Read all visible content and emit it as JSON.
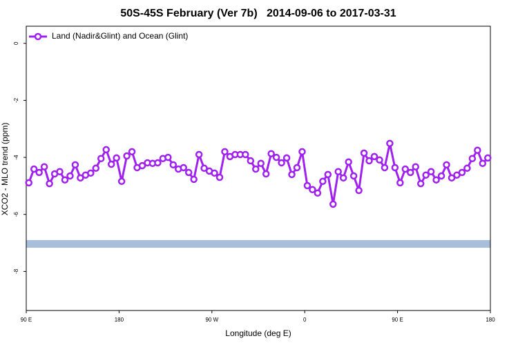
{
  "chart_data": {
    "type": "line",
    "title": "50S-45S February (Ver 7b)   2014-09-06 to 2017-03-31",
    "xlabel": "Longitude (deg E)",
    "ylabel": "XCO2 - MLO trend (ppm)",
    "xlim": [
      90,
      540
    ],
    "ylim": [
      -9.37,
      0.6
    ],
    "xticks": [
      {
        "value": 90,
        "label": "90 E"
      },
      {
        "value": 180,
        "label": "180"
      },
      {
        "value": 270,
        "label": "90 W"
      },
      {
        "value": 360,
        "label": "0"
      },
      {
        "value": 450,
        "label": "90 E"
      },
      {
        "value": 540,
        "label": "180"
      }
    ],
    "yticks": [
      0,
      -2,
      -4,
      -6,
      -8
    ],
    "legend": "top-left",
    "band": {
      "ylim": [
        -7.17,
        -6.9
      ],
      "color": "#a8bfdc"
    },
    "x": [
      92.5,
      97.5,
      102.5,
      107.5,
      112.5,
      117.5,
      122.5,
      127.5,
      132.5,
      137.5,
      142.5,
      147.5,
      152.5,
      157.5,
      162.5,
      167.5,
      172.5,
      177.5,
      182.5,
      187.5,
      192.5,
      197.5,
      202.5,
      207.5,
      212.5,
      217.5,
      222.5,
      227.5,
      232.5,
      237.5,
      242.5,
      247.5,
      252.5,
      257.5,
      262.5,
      267.5,
      272.5,
      277.5,
      282.5,
      287.5,
      292.5,
      297.5,
      302.5,
      307.5,
      312.5,
      317.5,
      322.5,
      327.5,
      332.5,
      337.5,
      342.5,
      347.5,
      352.5,
      357.5,
      362.5,
      367.5,
      372.5,
      377.5,
      382.5,
      387.5,
      392.5,
      397.5,
      402.5,
      407.5,
      412.5,
      417.5,
      422.5,
      427.5,
      432.5,
      437.5,
      442.5,
      447.5,
      452.5,
      457.5,
      462.5,
      467.5,
      472.5,
      477.5,
      482.5,
      487.5,
      492.5,
      497.5,
      502.5,
      507.5,
      512.5,
      517.5,
      522.5,
      527.5,
      532.5,
      537.5
    ],
    "series": [
      {
        "name": "Land (Nadir&Glint) and Ocean (Glint)",
        "color": "#a020f0",
        "values": [
          -4.89,
          -4.41,
          -4.53,
          -4.33,
          -4.92,
          -4.58,
          -4.5,
          -4.79,
          -4.65,
          -4.26,
          -4.72,
          -4.62,
          -4.55,
          -4.38,
          -4.04,
          -3.73,
          -4.24,
          -4.02,
          -4.84,
          -3.95,
          -3.8,
          -4.36,
          -4.29,
          -4.19,
          -4.21,
          -4.19,
          -4.04,
          -4.0,
          -4.26,
          -4.41,
          -4.36,
          -4.53,
          -4.77,
          -3.9,
          -4.38,
          -4.48,
          -4.55,
          -4.7,
          -3.8,
          -3.97,
          -3.9,
          -3.9,
          -3.9,
          -4.12,
          -4.41,
          -4.21,
          -4.58,
          -3.87,
          -4.0,
          -4.19,
          -4.02,
          -4.6,
          -4.36,
          -3.8,
          -4.99,
          -5.13,
          -5.25,
          -4.84,
          -4.6,
          -5.64,
          -4.5,
          -4.72,
          -4.16,
          -4.65,
          -5.16,
          -3.85,
          -4.12,
          -3.97,
          -4.09,
          -4.36,
          -3.51,
          -4.36,
          -4.89,
          -4.41,
          -4.53,
          -4.33,
          -4.92,
          -4.62,
          -4.5,
          -4.79,
          -4.65,
          -4.26,
          -4.72,
          -4.62,
          -4.53,
          -4.38,
          -4.04,
          -3.75,
          -4.21,
          -4.02
        ]
      }
    ]
  }
}
